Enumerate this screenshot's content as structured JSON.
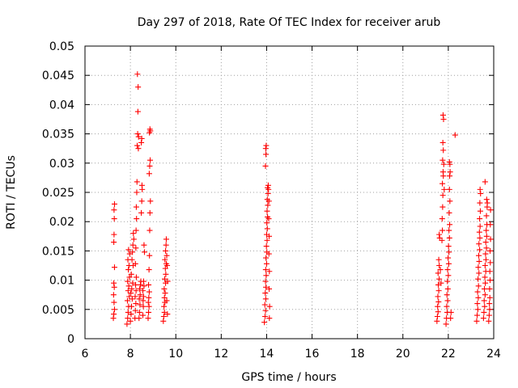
{
  "chart_data": {
    "type": "scatter",
    "title": "Day 297 of 2018, Rate Of TEC Index for receiver arub",
    "xlabel": "GPS time / hours",
    "ylabel": "ROTI / TECUs",
    "xlim": [
      6,
      24
    ],
    "ylim": [
      0,
      0.05
    ],
    "x_ticks": [
      6,
      8,
      10,
      12,
      14,
      16,
      18,
      20,
      22,
      24
    ],
    "x_tick_labels": [
      "6",
      "8",
      "10",
      "12",
      "14",
      "16",
      "18",
      "20",
      "22",
      "24"
    ],
    "y_ticks": [
      0,
      0.005,
      0.01,
      0.015,
      0.02,
      0.025,
      0.03,
      0.035,
      0.04,
      0.045,
      0.05
    ],
    "y_tick_labels": [
      "0",
      "0.005",
      "0.01",
      "0.015",
      "0.02",
      "0.025",
      "0.03",
      "0.035",
      "0.04",
      "0.045",
      "0.05"
    ],
    "grid": true,
    "marker": "+",
    "series": [
      {
        "name": "ROTI",
        "color": "#ff0000",
        "points": [
          [
            7.25,
            0.0035
          ],
          [
            7.27,
            0.0042
          ],
          [
            7.3,
            0.005
          ],
          [
            7.28,
            0.0062
          ],
          [
            7.26,
            0.0075
          ],
          [
            7.29,
            0.0088
          ],
          [
            7.27,
            0.0095
          ],
          [
            7.3,
            0.0122
          ],
          [
            7.28,
            0.0178
          ],
          [
            7.27,
            0.0165
          ],
          [
            7.29,
            0.0205
          ],
          [
            7.28,
            0.022
          ],
          [
            7.3,
            0.023
          ],
          [
            7.85,
            0.0025
          ],
          [
            7.88,
            0.0035
          ],
          [
            7.9,
            0.0045
          ],
          [
            7.92,
            0.0055
          ],
          [
            7.87,
            0.0065
          ],
          [
            7.95,
            0.0072
          ],
          [
            7.9,
            0.0082
          ],
          [
            7.93,
            0.009
          ],
          [
            7.88,
            0.0098
          ],
          [
            7.96,
            0.0105
          ],
          [
            7.91,
            0.0118
          ],
          [
            7.94,
            0.0125
          ],
          [
            7.89,
            0.0135
          ],
          [
            7.97,
            0.0145
          ],
          [
            7.92,
            0.0152
          ],
          [
            8.0,
            0.003
          ],
          [
            8.03,
            0.0042
          ],
          [
            8.05,
            0.0055
          ],
          [
            8.08,
            0.0068
          ],
          [
            8.02,
            0.0078
          ],
          [
            8.06,
            0.0085
          ],
          [
            8.1,
            0.0095
          ],
          [
            8.04,
            0.011
          ],
          [
            8.12,
            0.0125
          ],
          [
            8.07,
            0.0135
          ],
          [
            8.09,
            0.0148
          ],
          [
            8.11,
            0.016
          ],
          [
            8.15,
            0.017
          ],
          [
            8.13,
            0.018
          ],
          [
            8.2,
            0.0035
          ],
          [
            8.22,
            0.0048
          ],
          [
            8.24,
            0.006
          ],
          [
            8.21,
            0.0072
          ],
          [
            8.25,
            0.0082
          ],
          [
            8.23,
            0.0092
          ],
          [
            8.26,
            0.0105
          ],
          [
            8.22,
            0.0128
          ],
          [
            8.24,
            0.0155
          ],
          [
            8.25,
            0.0185
          ],
          [
            8.27,
            0.0205
          ],
          [
            8.26,
            0.0225
          ],
          [
            8.28,
            0.025
          ],
          [
            8.29,
            0.0268
          ],
          [
            8.3,
            0.033
          ],
          [
            8.32,
            0.035
          ],
          [
            8.33,
            0.0388
          ],
          [
            8.34,
            0.043
          ],
          [
            8.31,
            0.0452
          ],
          [
            8.36,
            0.0345
          ],
          [
            8.35,
            0.0325
          ],
          [
            8.38,
            0.0035
          ],
          [
            8.4,
            0.0045
          ],
          [
            8.42,
            0.0058
          ],
          [
            8.39,
            0.0068
          ],
          [
            8.43,
            0.0075
          ],
          [
            8.41,
            0.0085
          ],
          [
            8.44,
            0.0092
          ],
          [
            8.46,
            0.0098
          ],
          [
            8.48,
            0.0215
          ],
          [
            8.5,
            0.0235
          ],
          [
            8.52,
            0.0255
          ],
          [
            8.51,
            0.0262
          ],
          [
            8.48,
            0.0335
          ],
          [
            8.5,
            0.0342
          ],
          [
            8.55,
            0.004
          ],
          [
            8.57,
            0.0055
          ],
          [
            8.56,
            0.0065
          ],
          [
            8.58,
            0.0072
          ],
          [
            8.55,
            0.0082
          ],
          [
            8.6,
            0.009
          ],
          [
            8.58,
            0.0098
          ],
          [
            8.6,
            0.016
          ],
          [
            8.62,
            0.0148
          ],
          [
            8.78,
            0.0035
          ],
          [
            8.8,
            0.0045
          ],
          [
            8.82,
            0.0055
          ],
          [
            8.79,
            0.0062
          ],
          [
            8.81,
            0.007
          ],
          [
            8.83,
            0.008
          ],
          [
            8.8,
            0.0092
          ],
          [
            8.82,
            0.0118
          ],
          [
            8.84,
            0.0142
          ],
          [
            8.85,
            0.0185
          ],
          [
            8.86,
            0.0215
          ],
          [
            8.88,
            0.0235
          ],
          [
            8.83,
            0.0282
          ],
          [
            8.85,
            0.0295
          ],
          [
            8.87,
            0.0305
          ],
          [
            8.84,
            0.0352
          ],
          [
            8.86,
            0.0358
          ],
          [
            8.88,
            0.0355
          ],
          [
            9.45,
            0.003
          ],
          [
            9.47,
            0.0038
          ],
          [
            9.5,
            0.0045
          ],
          [
            9.48,
            0.0055
          ],
          [
            9.52,
            0.0062
          ],
          [
            9.5,
            0.007
          ],
          [
            9.53,
            0.0078
          ],
          [
            9.49,
            0.0085
          ],
          [
            9.55,
            0.0095
          ],
          [
            9.51,
            0.0102
          ],
          [
            9.56,
            0.011
          ],
          [
            9.54,
            0.012
          ],
          [
            9.58,
            0.0128
          ],
          [
            9.52,
            0.0135
          ],
          [
            9.6,
            0.0142
          ],
          [
            9.55,
            0.015
          ],
          [
            9.57,
            0.016
          ],
          [
            9.58,
            0.017
          ],
          [
            9.62,
            0.0125
          ],
          [
            9.64,
            0.0098
          ],
          [
            9.6,
            0.0065
          ],
          [
            9.63,
            0.0042
          ],
          [
            13.9,
            0.0028
          ],
          [
            13.93,
            0.0038
          ],
          [
            13.95,
            0.0048
          ],
          [
            13.92,
            0.0058
          ],
          [
            13.96,
            0.0068
          ],
          [
            13.94,
            0.0078
          ],
          [
            13.97,
            0.0088
          ],
          [
            13.95,
            0.0098
          ],
          [
            13.98,
            0.0108
          ],
          [
            13.96,
            0.0118
          ],
          [
            14.0,
            0.0128
          ],
          [
            13.97,
            0.0138
          ],
          [
            14.01,
            0.0148
          ],
          [
            13.99,
            0.0158
          ],
          [
            14.02,
            0.0168
          ],
          [
            14.0,
            0.0178
          ],
          [
            14.03,
            0.0188
          ],
          [
            14.01,
            0.0198
          ],
          [
            14.04,
            0.0208
          ],
          [
            14.02,
            0.0218
          ],
          [
            14.05,
            0.0228
          ],
          [
            14.03,
            0.0238
          ],
          [
            14.06,
            0.0248
          ],
          [
            14.04,
            0.0258
          ],
          [
            14.07,
            0.0262
          ],
          [
            14.08,
            0.0255
          ],
          [
            14.1,
            0.0235
          ],
          [
            14.09,
            0.0205
          ],
          [
            14.11,
            0.0175
          ],
          [
            14.1,
            0.0145
          ],
          [
            14.12,
            0.0115
          ],
          [
            14.11,
            0.0085
          ],
          [
            14.13,
            0.0055
          ],
          [
            14.12,
            0.0035
          ],
          [
            13.95,
            0.0295
          ],
          [
            13.97,
            0.0315
          ],
          [
            13.96,
            0.0325
          ],
          [
            13.98,
            0.033
          ],
          [
            21.5,
            0.003
          ],
          [
            21.52,
            0.0038
          ],
          [
            21.55,
            0.0046
          ],
          [
            21.53,
            0.0055
          ],
          [
            21.57,
            0.0063
          ],
          [
            21.54,
            0.0072
          ],
          [
            21.58,
            0.0082
          ],
          [
            21.56,
            0.0092
          ],
          [
            21.6,
            0.0102
          ],
          [
            21.55,
            0.0112
          ],
          [
            21.6,
            0.0125
          ],
          [
            21.58,
            0.0135
          ],
          [
            21.62,
            0.0172
          ],
          [
            21.6,
            0.0178
          ],
          [
            21.65,
            0.0118
          ],
          [
            21.68,
            0.0095
          ],
          [
            21.72,
            0.0168
          ],
          [
            21.74,
            0.0185
          ],
          [
            21.73,
            0.0205
          ],
          [
            21.75,
            0.0225
          ],
          [
            21.76,
            0.0245
          ],
          [
            21.74,
            0.0265
          ],
          [
            21.77,
            0.0285
          ],
          [
            21.75,
            0.0305
          ],
          [
            21.78,
            0.0322
          ],
          [
            21.76,
            0.0335
          ],
          [
            21.77,
            0.0382
          ],
          [
            21.79,
            0.0375
          ],
          [
            21.8,
            0.0298
          ],
          [
            21.78,
            0.0278
          ],
          [
            21.82,
            0.0255
          ],
          [
            21.9,
            0.0025
          ],
          [
            21.92,
            0.0035
          ],
          [
            21.95,
            0.0045
          ],
          [
            21.93,
            0.0055
          ],
          [
            21.97,
            0.0065
          ],
          [
            21.94,
            0.0075
          ],
          [
            21.98,
            0.0085
          ],
          [
            21.96,
            0.0098
          ],
          [
            22.0,
            0.0108
          ],
          [
            21.97,
            0.0118
          ],
          [
            22.02,
            0.0128
          ],
          [
            21.99,
            0.0138
          ],
          [
            22.03,
            0.0148
          ],
          [
            22.01,
            0.0158
          ],
          [
            22.05,
            0.0172
          ],
          [
            22.03,
            0.0185
          ],
          [
            22.06,
            0.0195
          ],
          [
            22.04,
            0.0215
          ],
          [
            22.07,
            0.0235
          ],
          [
            22.05,
            0.0255
          ],
          [
            22.06,
            0.0278
          ],
          [
            22.08,
            0.0285
          ],
          [
            22.07,
            0.0298
          ],
          [
            22.05,
            0.0302
          ],
          [
            22.1,
            0.0035
          ],
          [
            22.12,
            0.0045
          ],
          [
            22.3,
            0.0348
          ],
          [
            23.25,
            0.003
          ],
          [
            23.27,
            0.004
          ],
          [
            23.3,
            0.005
          ],
          [
            23.28,
            0.006
          ],
          [
            23.32,
            0.007
          ],
          [
            23.29,
            0.008
          ],
          [
            23.33,
            0.009
          ],
          [
            23.31,
            0.0102
          ],
          [
            23.35,
            0.0112
          ],
          [
            23.32,
            0.0122
          ],
          [
            23.36,
            0.0132
          ],
          [
            23.34,
            0.0142
          ],
          [
            23.38,
            0.0152
          ],
          [
            23.35,
            0.0162
          ],
          [
            23.39,
            0.0172
          ],
          [
            23.37,
            0.0182
          ],
          [
            23.4,
            0.0192
          ],
          [
            23.38,
            0.0205
          ],
          [
            23.41,
            0.0218
          ],
          [
            23.39,
            0.0232
          ],
          [
            23.42,
            0.0248
          ],
          [
            23.4,
            0.0255
          ],
          [
            23.55,
            0.0035
          ],
          [
            23.57,
            0.0045
          ],
          [
            23.6,
            0.0055
          ],
          [
            23.58,
            0.0065
          ],
          [
            23.62,
            0.0075
          ],
          [
            23.59,
            0.0085
          ],
          [
            23.63,
            0.0095
          ],
          [
            23.61,
            0.0105
          ],
          [
            23.65,
            0.0115
          ],
          [
            23.62,
            0.0125
          ],
          [
            23.66,
            0.0135
          ],
          [
            23.64,
            0.0145
          ],
          [
            23.68,
            0.0155
          ],
          [
            23.65,
            0.0165
          ],
          [
            23.69,
            0.0175
          ],
          [
            23.67,
            0.0185
          ],
          [
            23.7,
            0.0195
          ],
          [
            23.68,
            0.021
          ],
          [
            23.71,
            0.0225
          ],
          [
            23.69,
            0.0238
          ],
          [
            23.72,
            0.0232
          ],
          [
            23.62,
            0.0268
          ],
          [
            23.78,
            0.003
          ],
          [
            23.8,
            0.004
          ],
          [
            23.82,
            0.005
          ],
          [
            23.81,
            0.006
          ],
          [
            23.83,
            0.007
          ],
          [
            23.82,
            0.0085
          ],
          [
            23.84,
            0.01
          ],
          [
            23.83,
            0.0115
          ],
          [
            23.85,
            0.013
          ],
          [
            23.84,
            0.015
          ],
          [
            23.86,
            0.017
          ],
          [
            23.85,
            0.0195
          ],
          [
            23.86,
            0.022
          ]
        ]
      }
    ]
  }
}
